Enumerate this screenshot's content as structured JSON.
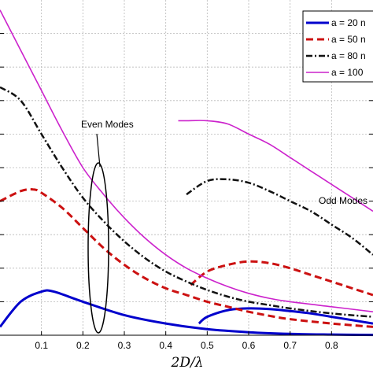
{
  "chart_data": {
    "type": "line",
    "title": "",
    "xlabel": "2D/λ",
    "ylabel": "",
    "xlim": [
      0,
      0.9
    ],
    "ylim": [
      0,
      1
    ],
    "x_ticks": [
      "0.1",
      "0.2",
      "0.3",
      "0.4",
      "0.5",
      "0.6",
      "0.7",
      "0.8"
    ],
    "grid": true,
    "legend_placement": "top-right",
    "legend": [
      {
        "label": "a = 20 n",
        "color": "#0000cc",
        "style": "solid",
        "width": 3
      },
      {
        "label": "a = 50 n",
        "color": "#cc1111",
        "style": "dashed",
        "width": 3
      },
      {
        "label": "a = 80 n",
        "color": "#111111",
        "style": "dashdot",
        "width": 2.5
      },
      {
        "label": "a = 100",
        "color": "#cc22cc",
        "style": "solid",
        "width": 1.6
      }
    ],
    "series": [
      {
        "name": "a = 20 n",
        "mode": "even",
        "x": [
          0,
          0.05,
          0.1,
          0.13,
          0.2,
          0.3,
          0.4,
          0.5,
          0.6,
          0.7,
          0.8,
          0.9
        ],
        "y": [
          0.025,
          0.1,
          0.13,
          0.13,
          0.1,
          0.06,
          0.035,
          0.018,
          0.009,
          0.004,
          0.002,
          0.001
        ]
      },
      {
        "name": "a = 20 n",
        "mode": "odd",
        "x": [
          0.48,
          0.5,
          0.55,
          0.6,
          0.65,
          0.7,
          0.75,
          0.8,
          0.85,
          0.9
        ],
        "y": [
          0.035,
          0.055,
          0.075,
          0.08,
          0.078,
          0.072,
          0.065,
          0.055,
          0.045,
          0.035
        ]
      },
      {
        "name": "a = 50 n",
        "mode": "even",
        "x": [
          0,
          0.05,
          0.08,
          0.1,
          0.15,
          0.2,
          0.25,
          0.3,
          0.35,
          0.4,
          0.45,
          0.5,
          0.55,
          0.6,
          0.65,
          0.7,
          0.8,
          0.9
        ],
        "y": [
          0.4,
          0.43,
          0.435,
          0.425,
          0.38,
          0.32,
          0.26,
          0.21,
          0.17,
          0.14,
          0.12,
          0.1,
          0.085,
          0.07,
          0.058,
          0.048,
          0.035,
          0.025
        ]
      },
      {
        "name": "a = 50 n",
        "mode": "odd",
        "x": [
          0.46,
          0.5,
          0.55,
          0.6,
          0.65,
          0.7,
          0.75,
          0.8,
          0.85,
          0.9
        ],
        "y": [
          0.15,
          0.19,
          0.21,
          0.22,
          0.215,
          0.2,
          0.18,
          0.16,
          0.14,
          0.12
        ]
      },
      {
        "name": "a = 80 n",
        "mode": "even",
        "x": [
          0,
          0.05,
          0.1,
          0.15,
          0.2,
          0.25,
          0.3,
          0.35,
          0.4,
          0.45,
          0.5,
          0.55,
          0.6,
          0.65,
          0.7,
          0.8,
          0.9
        ],
        "y": [
          0.74,
          0.7,
          0.6,
          0.5,
          0.41,
          0.34,
          0.28,
          0.23,
          0.19,
          0.16,
          0.135,
          0.115,
          0.1,
          0.09,
          0.08,
          0.065,
          0.055
        ]
      },
      {
        "name": "a = 80 n",
        "mode": "odd",
        "x": [
          0.45,
          0.5,
          0.55,
          0.6,
          0.65,
          0.7,
          0.75,
          0.8,
          0.85,
          0.9
        ],
        "y": [
          0.42,
          0.46,
          0.465,
          0.455,
          0.43,
          0.4,
          0.37,
          0.33,
          0.29,
          0.24
        ]
      },
      {
        "name": "a = 100",
        "mode": "even",
        "x": [
          0,
          0.05,
          0.1,
          0.15,
          0.2,
          0.25,
          0.3,
          0.35,
          0.4,
          0.45,
          0.5,
          0.55,
          0.6,
          0.65,
          0.7,
          0.8,
          0.9
        ],
        "y": [
          0.97,
          0.85,
          0.73,
          0.61,
          0.5,
          0.42,
          0.35,
          0.29,
          0.24,
          0.2,
          0.17,
          0.145,
          0.125,
          0.11,
          0.1,
          0.085,
          0.07
        ]
      },
      {
        "name": "a = 100",
        "mode": "odd",
        "x": [
          0.43,
          0.45,
          0.5,
          0.55,
          0.6,
          0.65,
          0.7,
          0.75,
          0.8,
          0.85,
          0.9
        ],
        "y": [
          0.64,
          0.64,
          0.64,
          0.63,
          0.6,
          0.57,
          0.53,
          0.49,
          0.45,
          0.41,
          0.37
        ]
      }
    ],
    "annotations": {
      "even_modes": "Even Modes",
      "odd_modes": "Odd Modes"
    }
  }
}
